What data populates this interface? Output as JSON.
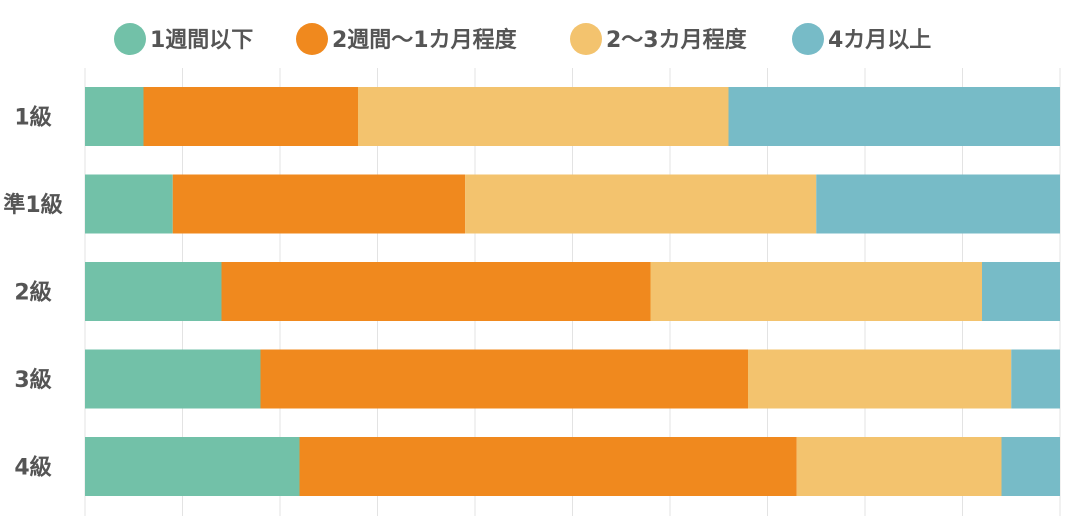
{
  "chart_data": {
    "type": "bar",
    "orientation": "horizontal",
    "stacked": true,
    "normalized": true,
    "categories": [
      "1級",
      "準1級",
      "2級",
      "3級",
      "4級"
    ],
    "series": [
      {
        "name": "1週間以下",
        "color": "#72c1a8",
        "values": [
          6,
          9,
          14,
          18,
          22
        ]
      },
      {
        "name": "2週間〜1カ月程度",
        "color": "#f0891e",
        "values": [
          22,
          30,
          44,
          50,
          51
        ]
      },
      {
        "name": "2〜3カ月程度",
        "color": "#f3c36e",
        "values": [
          38,
          36,
          34,
          27,
          21
        ]
      },
      {
        "name": "4カ月以上",
        "color": "#77bbc7",
        "values": [
          34,
          25,
          8,
          5,
          6
        ]
      }
    ],
    "xlim": [
      0,
      100
    ],
    "grid": true,
    "legend_position": "top"
  }
}
